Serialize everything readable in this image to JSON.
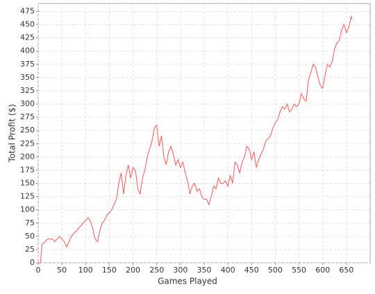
{
  "chart_data": {
    "type": "line",
    "x_label": "Games Played",
    "y_label": "Total Profit ($)",
    "x": [
      0,
      5,
      8,
      15,
      20,
      30,
      35,
      40,
      45,
      50,
      55,
      60,
      65,
      70,
      75,
      80,
      85,
      90,
      95,
      100,
      105,
      110,
      115,
      120,
      125,
      130,
      135,
      140,
      145,
      150,
      155,
      160,
      165,
      170,
      175,
      180,
      185,
      190,
      195,
      200,
      205,
      210,
      215,
      220,
      225,
      230,
      235,
      240,
      245,
      250,
      255,
      260,
      265,
      270,
      275,
      280,
      285,
      290,
      295,
      300,
      305,
      310,
      315,
      320,
      325,
      330,
      335,
      340,
      345,
      350,
      355,
      360,
      365,
      370,
      375,
      380,
      385,
      390,
      395,
      400,
      405,
      410,
      415,
      420,
      425,
      430,
      435,
      440,
      445,
      450,
      455,
      460,
      465,
      470,
      475,
      480,
      485,
      490,
      495,
      500,
      505,
      510,
      515,
      520,
      525,
      530,
      535,
      540,
      545,
      550,
      555,
      560,
      565,
      570,
      575,
      580,
      585,
      590,
      595,
      600,
      605,
      610,
      615,
      620,
      625,
      630,
      635,
      640,
      645,
      650,
      655,
      660,
      662
    ],
    "series": [
      {
        "name": "Total Profit",
        "color": "#ff5555",
        "values": [
          0,
          0,
          35,
          40,
          45,
          45,
          40,
          45,
          50,
          45,
          40,
          30,
          40,
          50,
          55,
          60,
          65,
          70,
          75,
          80,
          85,
          80,
          65,
          45,
          40,
          60,
          75,
          80,
          90,
          95,
          100,
          110,
          120,
          150,
          170,
          130,
          165,
          185,
          160,
          180,
          175,
          140,
          130,
          160,
          175,
          200,
          215,
          230,
          255,
          260,
          220,
          240,
          200,
          185,
          210,
          220,
          205,
          185,
          195,
          180,
          190,
          170,
          155,
          130,
          145,
          150,
          135,
          140,
          125,
          120,
          120,
          110,
          125,
          145,
          140,
          160,
          150,
          150,
          155,
          145,
          165,
          150,
          190,
          185,
          170,
          190,
          200,
          220,
          215,
          195,
          210,
          180,
          195,
          205,
          215,
          230,
          235,
          240,
          255,
          265,
          270,
          285,
          295,
          290,
          300,
          285,
          290,
          300,
          295,
          300,
          320,
          310,
          305,
          345,
          360,
          375,
          370,
          350,
          335,
          330,
          355,
          375,
          370,
          380,
          405,
          415,
          420,
          440,
          450,
          435,
          445,
          465,
          460
        ]
      }
    ],
    "xlim": [
      0,
      700
    ],
    "ylim": [
      0,
      490
    ],
    "xticks": [
      0,
      50,
      100,
      150,
      200,
      250,
      300,
      350,
      400,
      450,
      500,
      550,
      600,
      650
    ],
    "yticks": [
      0,
      25,
      50,
      75,
      100,
      125,
      150,
      175,
      200,
      225,
      250,
      275,
      300,
      325,
      350,
      375,
      400,
      425,
      450,
      475
    ],
    "grid": true
  }
}
